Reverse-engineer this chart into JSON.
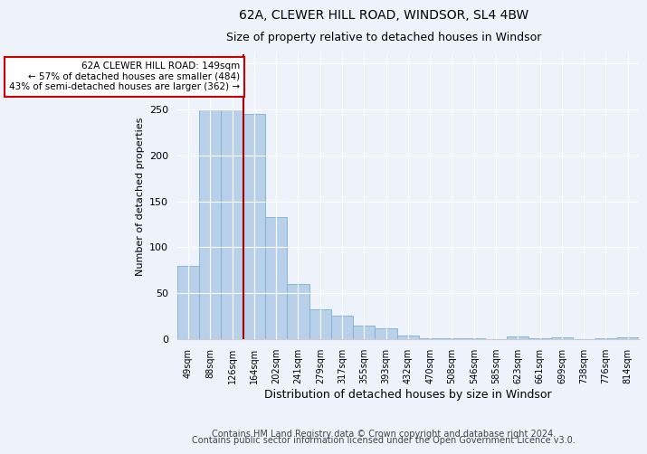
{
  "title1": "62A, CLEWER HILL ROAD, WINDSOR, SL4 4BW",
  "title2": "Size of property relative to detached houses in Windsor",
  "xlabel": "Distribution of detached houses by size in Windsor",
  "ylabel": "Number of detached properties",
  "footer1": "Contains HM Land Registry data © Crown copyright and database right 2024.",
  "footer2": "Contains public sector information licensed under the Open Government Licence v3.0.",
  "annotation_line1": "62A CLEWER HILL ROAD: 149sqm",
  "annotation_line2": "← 57% of detached houses are smaller (484)",
  "annotation_line3": "43% of semi-detached houses are larger (362) →",
  "bar_color": "#b8d0ea",
  "bar_edge_color": "#7aafd4",
  "marker_color": "#aa0000",
  "background_color": "#edf2fb",
  "categories": [
    "49sqm",
    "88sqm",
    "126sqm",
    "164sqm",
    "202sqm",
    "241sqm",
    "279sqm",
    "317sqm",
    "355sqm",
    "393sqm",
    "432sqm",
    "470sqm",
    "508sqm",
    "546sqm",
    "585sqm",
    "623sqm",
    "661sqm",
    "699sqm",
    "738sqm",
    "776sqm",
    "814sqm"
  ],
  "values": [
    80,
    250,
    250,
    245,
    133,
    60,
    32,
    26,
    15,
    12,
    4,
    1,
    1,
    1,
    0,
    3,
    1,
    2,
    0,
    1,
    2
  ],
  "property_bin_index": 3,
  "ylim": [
    0,
    310
  ],
  "yticks": [
    0,
    50,
    100,
    150,
    200,
    250,
    300
  ],
  "title1_fontsize": 10,
  "title2_fontsize": 9,
  "ylabel_fontsize": 8,
  "xlabel_fontsize": 9,
  "tick_fontsize": 8,
  "footer_fontsize": 7
}
